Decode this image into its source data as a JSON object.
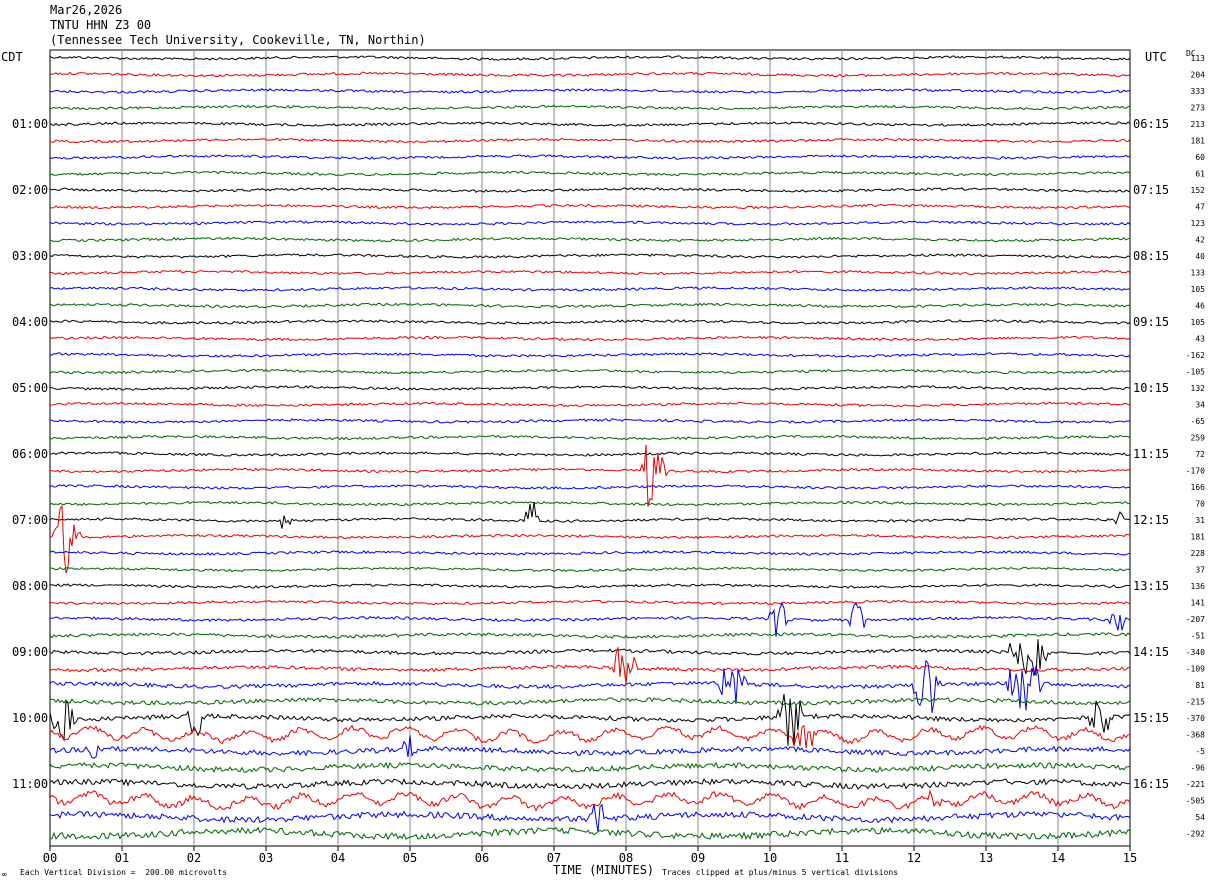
{
  "header": {
    "date": "Mar26,2026",
    "station": "TNTU HHN Z3 00",
    "location": "(Tennessee Tech University, Cookeville, TN, Northin)"
  },
  "left_timezone": "CDT",
  "right_timezone": "UTC",
  "dc_label": "DC",
  "colors": {
    "trace_cycle": [
      "#000000",
      "#e60000",
      "#0000e6",
      "#006400"
    ],
    "grid": "#000000"
  },
  "chart_data": {
    "type": "line",
    "description_type": "helicorder",
    "xlabel": "TIME (MINUTES)",
    "x_ticks": [
      "00",
      "01",
      "02",
      "03",
      "04",
      "05",
      "06",
      "07",
      "08",
      "09",
      "10",
      "11",
      "12",
      "13",
      "14",
      "15"
    ],
    "xlim": [
      0,
      15
    ],
    "left_hour_labels": [
      "01:00",
      "02:00",
      "03:00",
      "04:00",
      "05:00",
      "06:00",
      "07:00",
      "08:00",
      "09:00",
      "10:00",
      "11:00"
    ],
    "right_hour_labels": [
      "06:15",
      "07:15",
      "08:15",
      "09:15",
      "10:15",
      "11:15",
      "12:15",
      "13:15",
      "14:15",
      "15:15",
      "16:15"
    ],
    "dc_offsets": [
      "113",
      "204",
      "333",
      "273",
      "213",
      "181",
      "60",
      "61",
      "152",
      "47",
      "123",
      "42",
      "40",
      "133",
      "105",
      "46",
      "105",
      "43",
      "-162",
      "-105",
      "132",
      "34",
      "-65",
      "259",
      "72",
      "-170",
      "166",
      "70",
      "31",
      "181",
      "228",
      "37",
      "136",
      "141",
      "-207",
      "-51",
      "-340",
      "-109",
      "81",
      "-215",
      "-370",
      "-368",
      "-5",
      "-96",
      "-221",
      "-505",
      "54",
      "-292"
    ],
    "footer_left": "Each Vertical Division =  200.00 microvolts",
    "footer_right": "Traces clipped at plus/minus 5 vertical divisions",
    "events": [
      {
        "row": 29,
        "minute": 0.05,
        "duration": 0.6,
        "amp": 5,
        "label": "blue burst"
      },
      {
        "row": 25,
        "minute": 8.2,
        "duration": 0.6,
        "amp": 5,
        "label": "red burst"
      },
      {
        "row": 28,
        "minute": 6.6,
        "duration": 0.3,
        "amp": 3
      },
      {
        "row": 28,
        "minute": 3.2,
        "duration": 0.3,
        "amp": 1.5
      },
      {
        "row": 28,
        "minute": 14.8,
        "duration": 0.2,
        "amp": 2
      },
      {
        "row": 34,
        "minute": 10.0,
        "duration": 0.4,
        "amp": 2.5
      },
      {
        "row": 34,
        "minute": 11.1,
        "duration": 0.4,
        "amp": 2.5
      },
      {
        "row": 34,
        "minute": 14.7,
        "duration": 0.4,
        "amp": 2
      },
      {
        "row": 37,
        "minute": 7.8,
        "duration": 0.6,
        "amp": 3
      },
      {
        "row": 36,
        "minute": 13.3,
        "duration": 1.0,
        "amp": 3.5
      },
      {
        "row": 38,
        "minute": 9.3,
        "duration": 0.6,
        "amp": 4
      },
      {
        "row": 38,
        "minute": 12.0,
        "duration": 0.6,
        "amp": 4
      },
      {
        "row": 38,
        "minute": 13.3,
        "duration": 0.8,
        "amp": 3.5
      },
      {
        "row": 40,
        "minute": 0.0,
        "duration": 0.6,
        "amp": 3
      },
      {
        "row": 40,
        "minute": 1.9,
        "duration": 0.4,
        "amp": 4
      },
      {
        "row": 40,
        "minute": 10.1,
        "duration": 0.6,
        "amp": 4
      },
      {
        "row": 40,
        "minute": 14.4,
        "duration": 0.6,
        "amp": 2.5
      },
      {
        "row": 41,
        "minute": 10.3,
        "duration": 0.6,
        "amp": 2.5
      },
      {
        "row": 42,
        "minute": 0.5,
        "duration": 0.3,
        "amp": 2.5
      },
      {
        "row": 42,
        "minute": 4.9,
        "duration": 0.4,
        "amp": 2
      },
      {
        "row": 46,
        "minute": 7.5,
        "duration": 0.4,
        "amp": 3
      },
      {
        "row": 45,
        "minute": 12.1,
        "duration": 0.6,
        "amp": 1.5
      }
    ]
  }
}
